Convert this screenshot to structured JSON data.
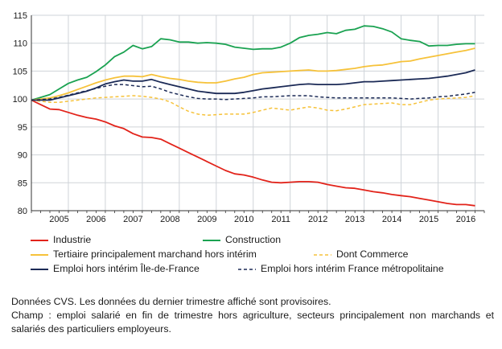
{
  "chart_data": {
    "type": "line",
    "title": "",
    "xlabel": "",
    "ylabel": "",
    "ylim": [
      80,
      115
    ],
    "yticks": [
      80,
      85,
      90,
      95,
      100,
      105,
      110,
      115
    ],
    "xlim": [
      2004.5,
      2016.75
    ],
    "year_labels": [
      "2005",
      "2006",
      "2007",
      "2008",
      "2009",
      "2010",
      "2011",
      "2012",
      "2013",
      "2014",
      "2015",
      "2016"
    ],
    "grid": true,
    "x": [
      2004.5,
      2004.75,
      2005,
      2005.25,
      2005.5,
      2005.75,
      2006,
      2006.25,
      2006.5,
      2006.75,
      2007,
      2007.25,
      2007.5,
      2007.75,
      2008,
      2008.25,
      2008.5,
      2008.75,
      2009,
      2009.25,
      2009.5,
      2009.75,
      2010,
      2010.25,
      2010.5,
      2010.75,
      2011,
      2011.25,
      2011.5,
      2011.75,
      2012,
      2012.25,
      2012.5,
      2012.75,
      2013,
      2013.25,
      2013.5,
      2013.75,
      2014,
      2014.25,
      2014.5,
      2014.75,
      2015,
      2015.25,
      2015.5,
      2015.75,
      2016,
      2016.25,
      2016.5
    ],
    "series": [
      {
        "name": "Industrie",
        "color": "#e2231a",
        "dash": "solid",
        "values": [
          99.8,
          99.0,
          98.2,
          98.1,
          97.6,
          97.1,
          96.7,
          96.4,
          95.9,
          95.2,
          94.7,
          93.8,
          93.2,
          93.1,
          92.8,
          92.0,
          91.2,
          90.4,
          89.6,
          88.8,
          88.0,
          87.2,
          86.6,
          86.4,
          86.0,
          85.5,
          85.1,
          85.0,
          85.1,
          85.2,
          85.2,
          85.1,
          84.7,
          84.4,
          84.1,
          84.0,
          83.7,
          83.4,
          83.2,
          82.9,
          82.7,
          82.5,
          82.2,
          81.9,
          81.6,
          81.3,
          81.1,
          81.1,
          80.9
        ]
      },
      {
        "name": "Construction",
        "color": "#1aa251",
        "dash": "solid",
        "values": [
          99.8,
          100.3,
          100.8,
          101.8,
          102.8,
          103.4,
          103.9,
          104.9,
          106.1,
          107.6,
          108.4,
          109.6,
          109.0,
          109.4,
          110.8,
          110.6,
          110.2,
          110.2,
          110.0,
          110.1,
          110.0,
          109.8,
          109.3,
          109.1,
          108.9,
          109.0,
          109.0,
          109.3,
          110.0,
          111.0,
          111.4,
          111.6,
          111.9,
          111.7,
          112.3,
          112.5,
          113.1,
          113.0,
          112.6,
          112.0,
          110.8,
          110.5,
          110.3,
          109.5,
          109.6,
          109.6,
          109.8,
          109.9,
          109.9
        ]
      },
      {
        "name": "Tertiaire principalement marchand hors intérim",
        "color": "#f6c23a",
        "dash": "solid",
        "values": [
          99.8,
          100.0,
          100.2,
          100.6,
          101.1,
          101.7,
          102.3,
          102.9,
          103.4,
          103.8,
          104.1,
          104.1,
          104.0,
          104.4,
          104.0,
          103.7,
          103.5,
          103.2,
          103.0,
          102.9,
          102.9,
          103.2,
          103.6,
          103.9,
          104.4,
          104.7,
          104.8,
          104.9,
          105.0,
          105.1,
          105.2,
          105.0,
          105.0,
          105.1,
          105.3,
          105.5,
          105.8,
          106.0,
          106.1,
          106.4,
          106.7,
          106.8,
          107.2,
          107.5,
          107.8,
          108.1,
          108.4,
          108.7,
          109.1
        ]
      },
      {
        "name": "Dont Commerce",
        "color": "#f6c23a",
        "dash": "dashed",
        "values": [
          99.8,
          99.6,
          99.4,
          99.4,
          99.6,
          99.8,
          100.0,
          100.2,
          100.3,
          100.4,
          100.5,
          100.6,
          100.5,
          100.3,
          100.0,
          99.5,
          98.6,
          97.8,
          97.3,
          97.1,
          97.2,
          97.3,
          97.3,
          97.3,
          97.6,
          98.0,
          98.4,
          98.2,
          98.0,
          98.3,
          98.6,
          98.4,
          98.0,
          97.9,
          98.2,
          98.6,
          99.0,
          99.1,
          99.2,
          99.3,
          99.0,
          99.0,
          99.4,
          99.8,
          100.0,
          100.1,
          100.2,
          100.3,
          100.6
        ]
      },
      {
        "name": "Emploi hors intérim Île-de-France",
        "color": "#1b2a56",
        "dash": "solid",
        "values": [
          99.8,
          99.8,
          99.8,
          100.2,
          100.6,
          101.0,
          101.4,
          102.0,
          102.7,
          103.1,
          103.4,
          103.2,
          103.2,
          103.5,
          103.0,
          102.6,
          102.2,
          101.8,
          101.4,
          101.2,
          101.0,
          101.0,
          101.0,
          101.2,
          101.5,
          101.8,
          102.0,
          102.2,
          102.4,
          102.6,
          102.7,
          102.6,
          102.6,
          102.6,
          102.7,
          102.9,
          103.1,
          103.1,
          103.2,
          103.3,
          103.4,
          103.5,
          103.6,
          103.7,
          103.9,
          104.1,
          104.4,
          104.7,
          105.2
        ]
      },
      {
        "name": "Emploi hors intérim France métropolitaine",
        "color": "#1b2a56",
        "dash": "dashed",
        "values": [
          99.8,
          99.9,
          100.0,
          100.3,
          100.7,
          101.1,
          101.5,
          101.9,
          102.3,
          102.6,
          102.6,
          102.4,
          102.2,
          102.3,
          101.8,
          101.2,
          100.8,
          100.4,
          100.1,
          100.0,
          100.0,
          99.9,
          100.0,
          100.1,
          100.2,
          100.4,
          100.4,
          100.5,
          100.6,
          100.6,
          100.6,
          100.4,
          100.3,
          100.2,
          100.2,
          100.2,
          100.2,
          100.2,
          100.2,
          100.2,
          100.1,
          100.0,
          100.1,
          100.2,
          100.4,
          100.5,
          100.7,
          100.9,
          101.2
        ]
      }
    ]
  },
  "legend": {
    "industrie": "Industrie",
    "construction": "Construction",
    "tertiaire": "Tertiaire principalement marchand hors intérim",
    "commerce": "Dont Commerce",
    "idf": "Emploi hors intérim Île-de-France",
    "france": "Emploi hors intérim France métropolitaine"
  },
  "notes": {
    "line1": "Données CVS. Les données du dernier trimestre affiché sont provisoires.",
    "line2": "Champ : emploi salarié en fin de trimestre hors agriculture, secteurs principalement non marchands et salariés des particuliers employeurs."
  }
}
